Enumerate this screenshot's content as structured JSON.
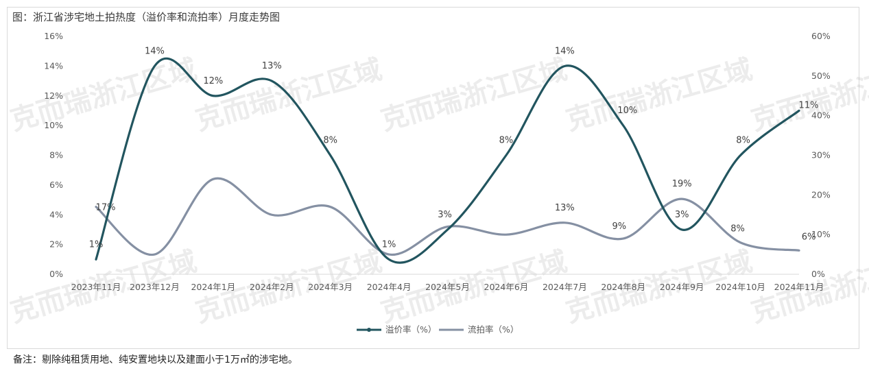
{
  "title": "图：浙江省涉宅地土拍热度（溢价率和流拍率）月度走势图",
  "note": "备注：剔除纯租赁用地、纯安置地块以及建面小于1万㎡的涉宅地。",
  "watermark": "克而瑞浙江区域",
  "chart_data": {
    "type": "line",
    "categories": [
      "2023年11月",
      "2023年12月",
      "2024年1月",
      "2024年2月",
      "2024年3月",
      "2024年4月",
      "2024年5月",
      "2024年6月",
      "2024年7月",
      "2024年8月",
      "2024年9月",
      "2024年10月",
      "2024年11月"
    ],
    "series": [
      {
        "name": "溢价率（%）",
        "axis": "left",
        "color": "#22555f",
        "values": [
          1,
          14,
          12,
          13,
          8,
          1,
          3,
          8,
          14,
          10,
          3,
          8,
          11
        ],
        "labels": [
          "1%",
          "14%",
          "12%",
          "13%",
          "8%",
          "1%",
          "3%",
          "8%",
          "14%",
          "10%",
          "3%",
          "8%",
          "11%"
        ]
      },
      {
        "name": "流拍率（%）",
        "axis": "right",
        "color": "#8590a3",
        "values": [
          17,
          5,
          24,
          15,
          17,
          5,
          12,
          10,
          13,
          9,
          19,
          8,
          6
        ],
        "labels": [
          "17%",
          "",
          "",
          "",
          "",
          "",
          "",
          "",
          "13%",
          "9%",
          "19%",
          "8%",
          "6%"
        ]
      }
    ],
    "y_left": {
      "min": 0,
      "max": 16,
      "step": 2,
      "tick_labels": [
        "0%",
        "2%",
        "4%",
        "6%",
        "8%",
        "10%",
        "12%",
        "14%",
        "16%"
      ]
    },
    "y_right": {
      "min": 0,
      "max": 60,
      "step": 10,
      "tick_labels": [
        "0%",
        "10%",
        "20%",
        "30%",
        "40%",
        "50%",
        "60%"
      ]
    },
    "legend": "bottom-center",
    "grid": false
  }
}
